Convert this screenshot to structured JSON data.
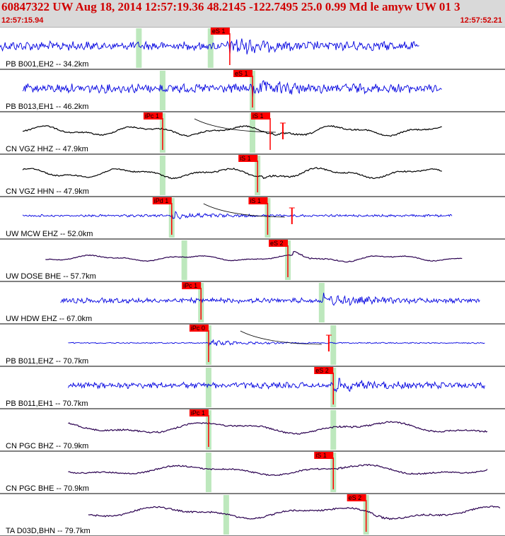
{
  "header": {
    "title": "60847322 UW Aug 18, 2014 12:57:19.36    48.2145 -122.7495 25.0 0.99 Md le amyw UW 01   3",
    "start_time": "12:57:15.94",
    "end_time": "12:57:52.21"
  },
  "colors": {
    "blue": "#0000e0",
    "black": "#000000",
    "purple": "#2a0050",
    "pick": "#ff0000",
    "window": "#bde8bd"
  },
  "traces": [
    {
      "label": "PB B001,EH2 -- 34.2km",
      "color": "blue",
      "start": 0.0,
      "end": 0.83,
      "amp": 0.45,
      "freq": 1.0,
      "smooth": false,
      "greens": [
        0.275,
        0.417
      ],
      "picks": [
        {
          "label": "eS 1",
          "pos": 0.455
        }
      ],
      "event": 0.455,
      "burst": 1.4,
      "coda": false
    },
    {
      "label": "PB B013,EH1 -- 46.2km",
      "color": "blue",
      "start": 0.045,
      "end": 0.875,
      "amp": 0.45,
      "freq": 1.0,
      "smooth": false,
      "greens": [
        0.322,
        0.5
      ],
      "picks": [
        {
          "label": "eS 1",
          "pos": 0.5
        }
      ],
      "event": 0.5,
      "burst": 1.6,
      "coda": false
    },
    {
      "label": "CN VGZ HHZ -- 47.9km",
      "color": "black",
      "start": 0.045,
      "end": 0.875,
      "amp": 0.5,
      "freq": 1.0,
      "smooth": true,
      "greens": [
        0.322,
        0.5
      ],
      "picks": [
        {
          "label": "iPc 1",
          "pos": 0.322
        },
        {
          "label": "iS 1",
          "pos": 0.535
        }
      ],
      "event": 0.54,
      "burst": 0.5,
      "coda": true
    },
    {
      "label": "CN VGZ HHN -- 47.9km",
      "color": "black",
      "start": 0.045,
      "end": 0.875,
      "amp": 0.5,
      "freq": 1.0,
      "smooth": true,
      "greens": [
        0.322,
        0.51
      ],
      "picks": [
        {
          "label": "iS 1",
          "pos": 0.51
        }
      ],
      "event": 0.52,
      "burst": 0.5,
      "coda": false
    },
    {
      "label": "UW MCW EHZ -- 52.0km",
      "color": "blue",
      "start": 0.045,
      "end": 0.895,
      "amp": 0.12,
      "freq": 1.0,
      "smooth": false,
      "greens": [
        0.34,
        0.53
      ],
      "picks": [
        {
          "label": "iPd 1",
          "pos": 0.34
        },
        {
          "label": "iS 1",
          "pos": 0.53
        }
      ],
      "event": 0.34,
      "burst": 2.5,
      "coda": true
    },
    {
      "label": "UW DOSE BHE -- 57.7km",
      "color": "purple",
      "start": 0.09,
      "end": 0.915,
      "amp": 0.3,
      "freq": 1.0,
      "smooth": true,
      "greens": [
        0.365,
        0.57
      ],
      "picks": [
        {
          "label": "eS 2",
          "pos": 0.57
        }
      ],
      "event": 0.58,
      "burst": 1.6,
      "coda": false
    },
    {
      "label": "UW HDW EHZ -- 67.0km",
      "color": "blue",
      "start": 0.12,
      "end": 0.95,
      "amp": 0.25,
      "freq": 1.0,
      "smooth": false,
      "greens": [
        0.398,
        0.637
      ],
      "picks": [
        {
          "label": "iPc 1",
          "pos": 0.398
        }
      ],
      "event": 0.64,
      "burst": 2.0,
      "coda": false
    },
    {
      "label": "PB B011,EHZ -- 70.7km",
      "color": "blue",
      "start": 0.135,
      "end": 0.96,
      "amp": 0.06,
      "freq": 1.0,
      "smooth": false,
      "greens": [
        0.413,
        0.66
      ],
      "picks": [
        {
          "label": "iPc 0",
          "pos": 0.413
        }
      ],
      "event": 0.413,
      "burst": 5.0,
      "coda": true
    },
    {
      "label": "PB B011,EH1 -- 70.7km",
      "color": "blue",
      "start": 0.135,
      "end": 0.96,
      "amp": 0.3,
      "freq": 1.0,
      "smooth": false,
      "greens": [
        0.413,
        0.66
      ],
      "picks": [
        {
          "label": "eS 2",
          "pos": 0.66
        }
      ],
      "event": 0.66,
      "burst": 1.6,
      "coda": false
    },
    {
      "label": "CN PGC BHZ -- 70.9km",
      "color": "purple",
      "start": 0.135,
      "end": 0.965,
      "amp": 0.6,
      "freq": 0.6,
      "smooth": true,
      "greens": [
        0.413,
        0.66
      ],
      "picks": [
        {
          "label": "iPc 1",
          "pos": 0.413
        }
      ],
      "event": 0.66,
      "burst": 0.3,
      "coda": false
    },
    {
      "label": "CN PGC BHE -- 70.9km",
      "color": "purple",
      "start": 0.135,
      "end": 0.965,
      "amp": 0.5,
      "freq": 0.6,
      "smooth": true,
      "greens": [
        0.413,
        0.66
      ],
      "picks": [
        {
          "label": "iS 1",
          "pos": 0.66
        }
      ],
      "event": 0.67,
      "burst": 0.6,
      "coda": false
    },
    {
      "label": "TA D03D,BHN -- 79.7km",
      "color": "purple",
      "start": 0.175,
      "end": 0.99,
      "amp": 0.6,
      "freq": 0.6,
      "smooth": true,
      "greens": [
        0.448,
        0.725
      ],
      "picks": [
        {
          "label": "eS 2",
          "pos": 0.725
        }
      ],
      "event": 0.73,
      "burst": 0.6,
      "coda": false
    }
  ]
}
